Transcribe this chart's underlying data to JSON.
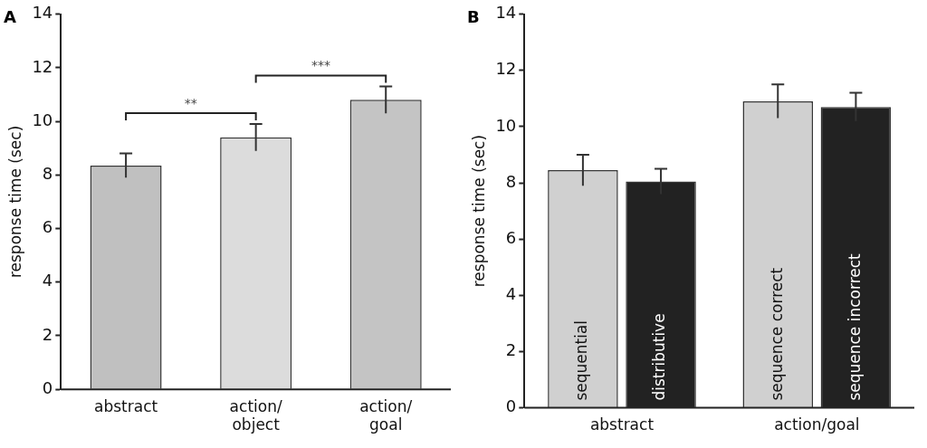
{
  "chart_data": [
    {
      "type": "bar",
      "title": "A",
      "ylabel": "response time (sec)",
      "categories": [
        "abstract",
        "action/object",
        "action/goal"
      ],
      "values": [
        8.35,
        9.4,
        10.8
      ],
      "errors": [
        0.45,
        0.5,
        0.5
      ],
      "colors": [
        "#c0c0c0",
        "#dcdcdc",
        "#c4c4c4"
      ],
      "ylim": [
        0,
        14
      ],
      "yticks": [
        0,
        2,
        4,
        6,
        8,
        10,
        12,
        14
      ],
      "grid": false,
      "legend": false,
      "annotations": [
        "**",
        "***"
      ]
    },
    {
      "type": "bar",
      "title": "B",
      "ylabel": "response time (sec)",
      "categories": [
        "abstract",
        "action/goal"
      ],
      "series": [
        {
          "color": "#d0d0d0",
          "values": [
            8.45,
            10.9
          ],
          "errors": [
            0.55,
            0.6
          ],
          "value_labels": [
            "sequential",
            "sequence correct"
          ]
        },
        {
          "color": "#222222",
          "values": [
            8.05,
            10.7
          ],
          "errors": [
            0.45,
            0.5
          ],
          "value_labels": [
            "distributive",
            "sequence incorrect"
          ]
        }
      ],
      "ylim": [
        0,
        14
      ],
      "yticks": [
        0,
        2,
        4,
        6,
        8,
        10,
        12,
        14
      ],
      "grid": false,
      "legend": false
    }
  ]
}
